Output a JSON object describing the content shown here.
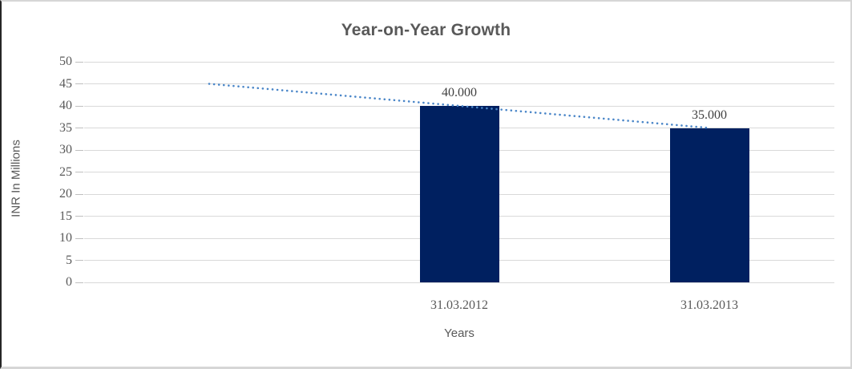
{
  "chart_data": {
    "type": "bar",
    "title": "Year-on-Year Growth",
    "xlabel": "Years",
    "ylabel": "INR In Millions",
    "ylim": [
      0,
      50
    ],
    "yticks": [
      0,
      5,
      10,
      15,
      20,
      25,
      30,
      35,
      40,
      45,
      50
    ],
    "grid": true,
    "legend": "none",
    "categories": [
      "",
      "31.03.2012",
      "31.03.2013"
    ],
    "series": [
      {
        "name": "bar-series",
        "type": "bar",
        "color": "#002060",
        "values": [
          null,
          40,
          35
        ],
        "data_labels": [
          "",
          "40.000",
          "35.000"
        ]
      },
      {
        "name": "trendline",
        "type": "line",
        "style": "dotted",
        "color": "#4a86c8",
        "values": [
          45,
          40,
          35
        ]
      }
    ],
    "colors": {
      "title_text": "#595959",
      "axis_text": "#595959",
      "data_label_text": "#404040",
      "gridline": "#d9d9d9",
      "bar_fill": "#002060",
      "trendline": "#4a86c8"
    }
  }
}
